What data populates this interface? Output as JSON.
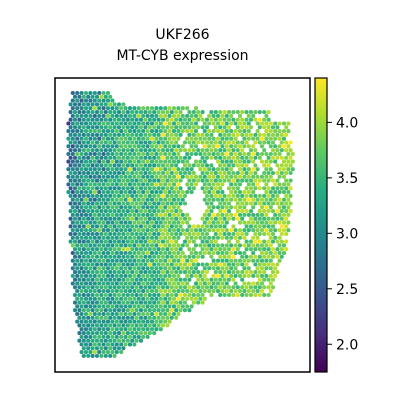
{
  "chart_data": {
    "type": "heatmap",
    "subtype": "spatial-spot-scatter",
    "title": "UKF266",
    "subtitle": "MT-CYB expression",
    "xlabel": "",
    "ylabel": "",
    "axes_ticks_visible": false,
    "grid": false,
    "colormap": "viridis",
    "colorbar": {
      "label": "",
      "range": [
        1.75,
        4.4
      ],
      "ticks": [
        2.0,
        2.5,
        3.0,
        3.5,
        4.0
      ],
      "tick_labels": [
        "2.0",
        "2.5",
        "3.0",
        "3.5",
        "4.0"
      ],
      "placement": "right"
    },
    "tissue_summary": {
      "left_band_low_expression": true,
      "right_lobe_high_expression": true,
      "typical_value": 3.5
    }
  }
}
